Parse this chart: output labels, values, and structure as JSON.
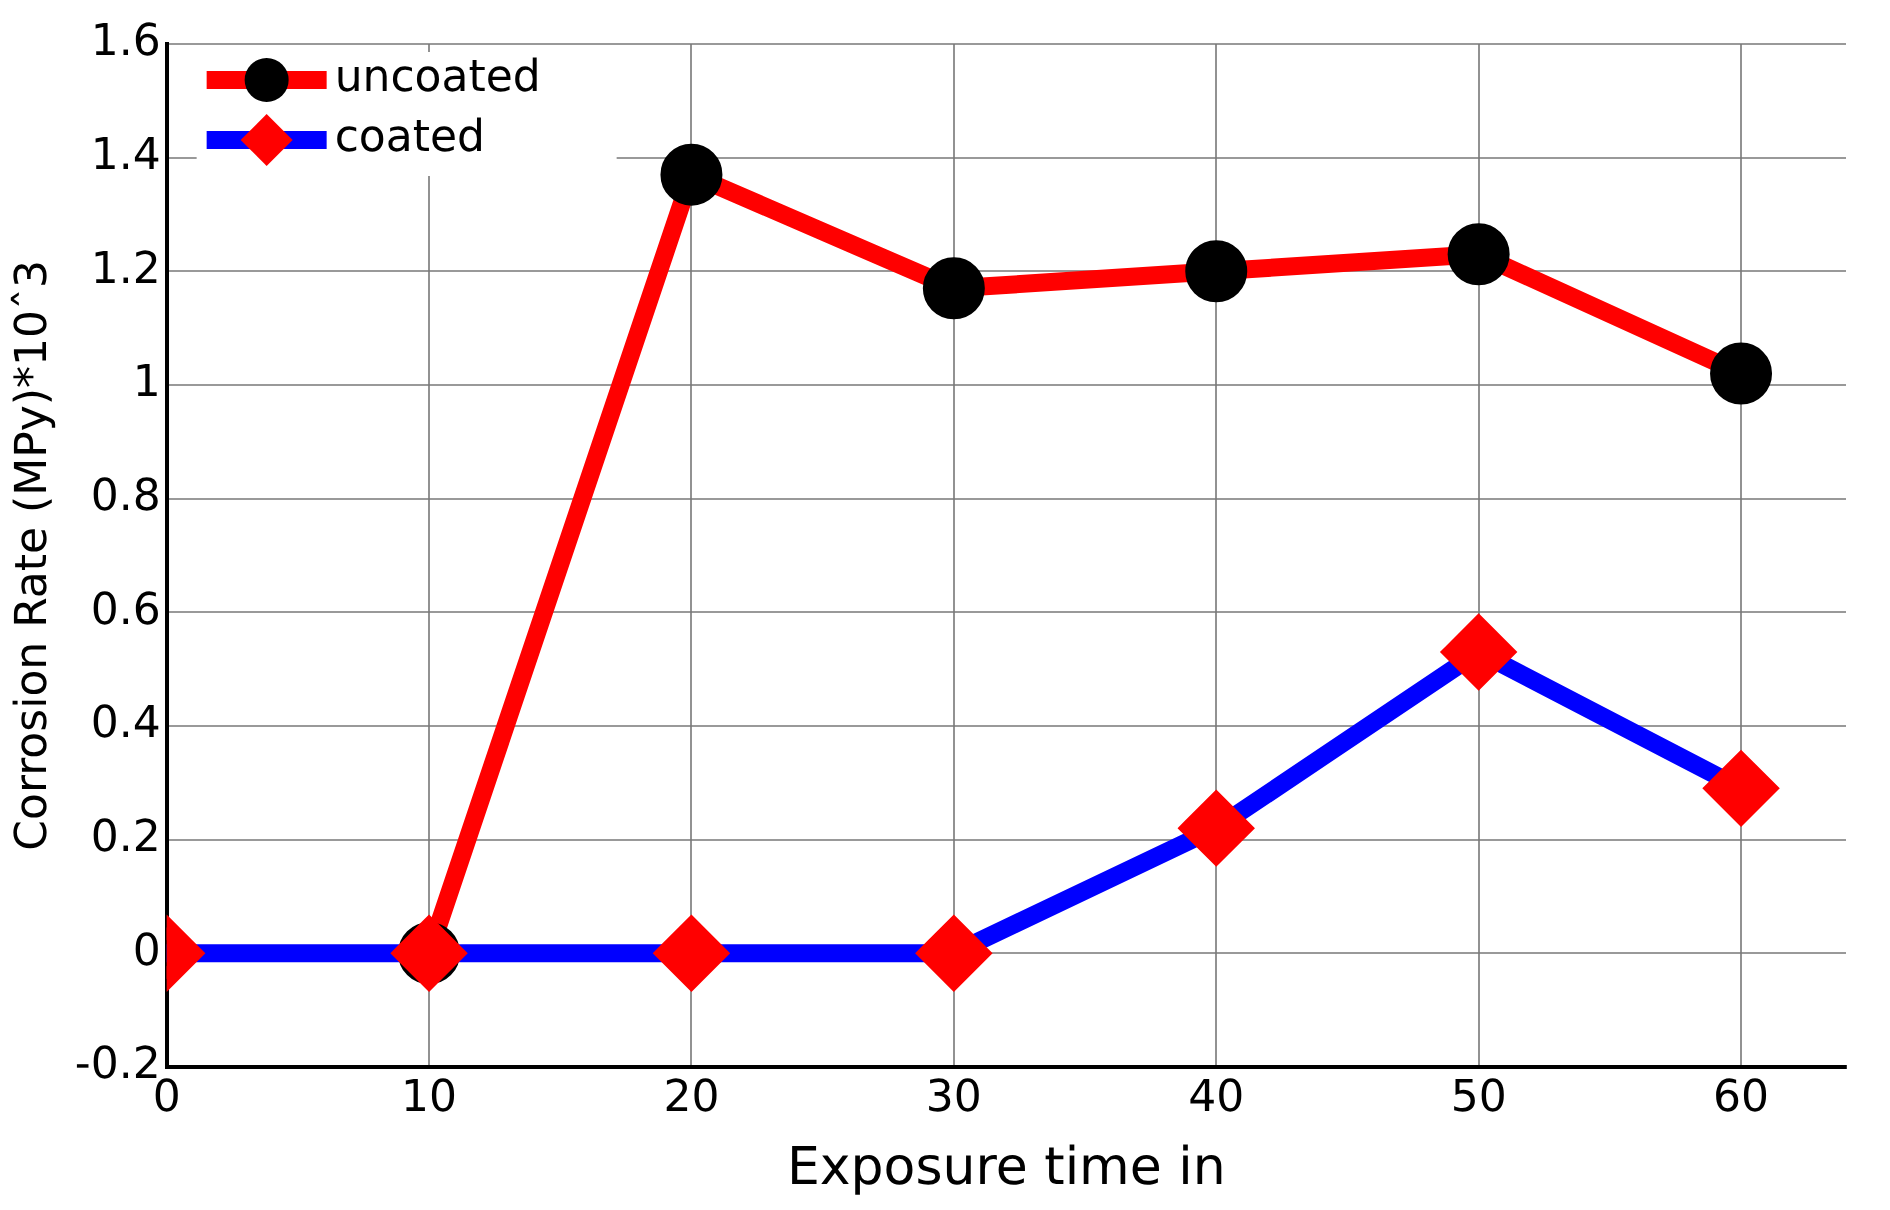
{
  "chart_data": {
    "type": "line",
    "xlabel": "Exposure time in",
    "ylabel": "Corrosion Rate (MPy)*10ˆ3",
    "x": [
      0,
      10,
      20,
      30,
      40,
      50,
      60
    ],
    "series": [
      {
        "name": "uncoated",
        "color": "#ff0000",
        "colors": [
          "#000000",
          "#000000",
          "#000000",
          "#000000",
          "#000000",
          "#000000",
          "#000000"
        ],
        "marker": "circle",
        "values": [
          null,
          0,
          1.37,
          1.17,
          1.2,
          1.23,
          1.02
        ]
      },
      {
        "name": "coated",
        "color": "#0000ff",
        "colors": [
          "#ff0000",
          "#ff0000",
          "#ff0000",
          "#ff0000",
          "#ff0000",
          "#ff0000",
          "#ff0000"
        ],
        "marker": "diamond",
        "values": [
          0,
          0,
          0,
          0,
          0.22,
          0.53,
          0.29
        ]
      }
    ],
    "xlim": [
      0,
      64
    ],
    "xticks": [
      0,
      10,
      20,
      30,
      40,
      50,
      60
    ],
    "ylim": [
      -0.2,
      1.6
    ],
    "yticks": [
      -0.2,
      0,
      0.2,
      0.4,
      0.6,
      0.8,
      1,
      1.2,
      1.4,
      1.6
    ],
    "grid": true,
    "legend": "top left",
    "line_style": "solid"
  }
}
